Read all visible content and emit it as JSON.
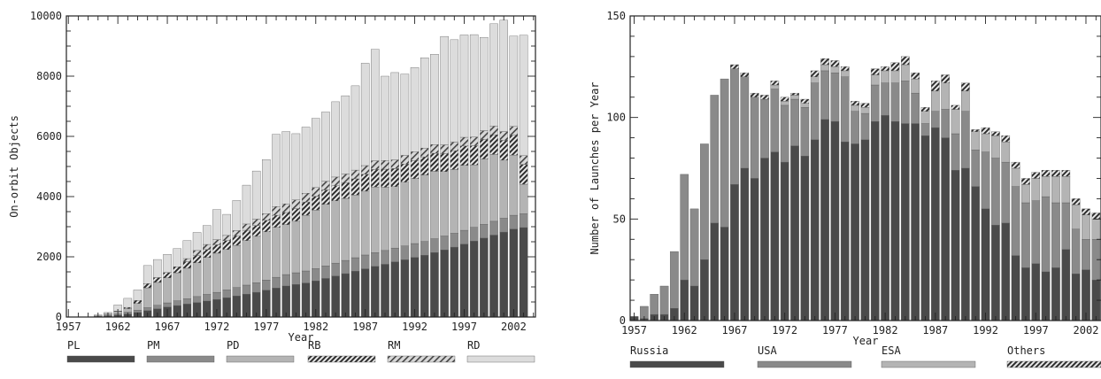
{
  "colors": {
    "PL": "#4a4a4a",
    "PM": "#8a8a8a",
    "PD": "#b4b4b4",
    "RB": "hatch-dark",
    "RM": "hatch-medium",
    "RD": "#dcdcdc",
    "Russia": "#4a4a4a",
    "USA": "#8a8a8a",
    "ESA": "#b4b4b4",
    "Others": "hatch-dark"
  },
  "chart_data": [
    {
      "type": "bar",
      "stacked": true,
      "xlabel": "Year",
      "ylabel": "On-orbit Objects",
      "ylim": [
        0,
        10000
      ],
      "yticks": [
        "0",
        "2000",
        "4000",
        "6000",
        "8000",
        "10000"
      ],
      "xticks": [
        "1957",
        "1962",
        "1967",
        "1972",
        "1977",
        "1982",
        "1987",
        "1992",
        "1997",
        "2002"
      ],
      "legend_position": "bottom",
      "x": [
        1957,
        1958,
        1959,
        1960,
        1961,
        1962,
        1963,
        1964,
        1965,
        1966,
        1967,
        1968,
        1969,
        1970,
        1971,
        1972,
        1973,
        1974,
        1975,
        1976,
        1977,
        1978,
        1979,
        1980,
        1981,
        1982,
        1983,
        1984,
        1985,
        1986,
        1987,
        1988,
        1989,
        1990,
        1991,
        1992,
        1993,
        1994,
        1995,
        1996,
        1997,
        1998,
        1999,
        2000,
        2001,
        2002,
        2003
      ],
      "series": [
        {
          "name": "PL",
          "values": [
            0,
            0,
            0,
            10,
            30,
            60,
            100,
            150,
            210,
            270,
            330,
            380,
            430,
            480,
            530,
            580,
            640,
            700,
            760,
            820,
            890,
            960,
            1030,
            1080,
            1130,
            1200,
            1280,
            1360,
            1440,
            1520,
            1600,
            1680,
            1750,
            1830,
            1900,
            1980,
            2050,
            2140,
            2230,
            2320,
            2420,
            2520,
            2620,
            2720,
            2820,
            2920,
            2970
          ]
        },
        {
          "name": "PM",
          "values": [
            0,
            0,
            0,
            10,
            20,
            40,
            60,
            80,
            100,
            120,
            140,
            160,
            180,
            200,
            220,
            240,
            260,
            280,
            300,
            320,
            340,
            360,
            380,
            390,
            400,
            410,
            420,
            430,
            440,
            450,
            460,
            460,
            460,
            460,
            460,
            460,
            460,
            460,
            460,
            460,
            460,
            460,
            460,
            460,
            460,
            460,
            460
          ]
        },
        {
          "name": "PD",
          "values": [
            0,
            0,
            0,
            20,
            40,
            80,
            120,
            220,
            660,
            760,
            830,
            930,
            1010,
            1120,
            1230,
            1300,
            1340,
            1400,
            1480,
            1540,
            1600,
            1660,
            1660,
            1710,
            1850,
            1940,
            2040,
            2070,
            2060,
            2080,
            2120,
            2180,
            2100,
            2040,
            2120,
            2160,
            2210,
            2240,
            2140,
            2120,
            2160,
            2070,
            2170,
            2220,
            1930,
            2000,
            980
          ]
        },
        {
          "name": "RB",
          "values": [
            0,
            0,
            0,
            0,
            10,
            20,
            40,
            100,
            140,
            160,
            180,
            200,
            220,
            240,
            260,
            280,
            300,
            320,
            340,
            360,
            380,
            400,
            400,
            420,
            440,
            460,
            480,
            500,
            520,
            540,
            560,
            580,
            600,
            600,
            600,
            600,
            600,
            600,
            600,
            620,
            640,
            640,
            650,
            650,
            660,
            660,
            660
          ]
        },
        {
          "name": "RM",
          "values": [
            0,
            0,
            0,
            0,
            0,
            0,
            0,
            0,
            0,
            0,
            0,
            0,
            100,
            170,
            170,
            170,
            170,
            170,
            210,
            210,
            220,
            290,
            290,
            290,
            290,
            290,
            290,
            290,
            290,
            290,
            290,
            290,
            290,
            290,
            290,
            290,
            290,
            290,
            290,
            290,
            290,
            290,
            290,
            290,
            290,
            290,
            290
          ]
        },
        {
          "name": "RD",
          "values": [
            0,
            0,
            0,
            30,
            50,
            200,
            300,
            350,
            600,
            600,
            600,
            600,
            600,
            600,
            630,
            1000,
            700,
            1000,
            1290,
            1600,
            1800,
            2400,
            2400,
            2200,
            2200,
            2300,
            2300,
            2500,
            2600,
            2800,
            3400,
            3700,
            2800,
            2900,
            2700,
            2800,
            3000,
            3000,
            3600,
            3400,
            3400,
            3400,
            3100,
            3400,
            3700,
            3000,
            4000
          ]
        }
      ]
    },
    {
      "type": "bar",
      "stacked": true,
      "xlabel": "Year",
      "ylabel": "Number of Launches per Year",
      "ylim": [
        0,
        150
      ],
      "yticks": [
        "0",
        "50",
        "100",
        "150"
      ],
      "xticks": [
        "1957",
        "1962",
        "1967",
        "1972",
        "1977",
        "1982",
        "1987",
        "1992",
        "1997",
        "2002"
      ],
      "legend_position": "bottom",
      "x": [
        1957,
        1958,
        1959,
        1960,
        1961,
        1962,
        1963,
        1964,
        1965,
        1966,
        1967,
        1968,
        1969,
        1970,
        1971,
        1972,
        1973,
        1974,
        1975,
        1976,
        1977,
        1978,
        1979,
        1980,
        1981,
        1982,
        1983,
        1984,
        1985,
        1986,
        1987,
        1988,
        1989,
        1990,
        1991,
        1992,
        1993,
        1994,
        1995,
        1996,
        1997,
        1998,
        1999,
        2000,
        2001,
        2002,
        2003
      ],
      "series": [
        {
          "name": "Russia",
          "values": [
            2,
            1,
            3,
            3,
            6,
            20,
            17,
            30,
            48,
            46,
            67,
            75,
            70,
            80,
            83,
            78,
            86,
            81,
            89,
            99,
            98,
            88,
            87,
            89,
            98,
            101,
            98,
            97,
            97,
            91,
            95,
            90,
            74,
            75,
            66,
            55,
            47,
            48,
            32,
            26,
            28,
            24,
            26,
            35,
            23,
            25,
            20
          ]
        },
        {
          "name": "USA",
          "values": [
            0,
            6,
            10,
            14,
            28,
            52,
            38,
            57,
            63,
            73,
            57,
            45,
            40,
            29,
            31,
            28,
            23,
            24,
            28,
            24,
            24,
            32,
            16,
            13,
            18,
            16,
            19,
            21,
            15,
            6,
            8,
            14,
            18,
            28,
            18,
            28,
            33,
            30,
            34,
            32,
            31,
            37,
            32,
            23,
            22,
            15,
            20
          ]
        },
        {
          "name": "ESA",
          "values": [
            0,
            0,
            0,
            0,
            0,
            0,
            0,
            0,
            0,
            0,
            0,
            0,
            0,
            0,
            2,
            2,
            2,
            2,
            3,
            3,
            3,
            3,
            3,
            3,
            5,
            6,
            6,
            8,
            7,
            6,
            10,
            13,
            12,
            10,
            9,
            9,
            11,
            10,
            9,
            9,
            11,
            10,
            13,
            13,
            12,
            12,
            10
          ]
        },
        {
          "name": "Others",
          "values": [
            0,
            0,
            0,
            0,
            0,
            0,
            0,
            0,
            0,
            0,
            2,
            2,
            2,
            2,
            2,
            2,
            1,
            2,
            3,
            3,
            3,
            2,
            2,
            2,
            3,
            2,
            4,
            4,
            3,
            2,
            5,
            4,
            2,
            4,
            1,
            3,
            2,
            3,
            3,
            3,
            3,
            3,
            3,
            3,
            3,
            3,
            3
          ]
        }
      ]
    }
  ]
}
